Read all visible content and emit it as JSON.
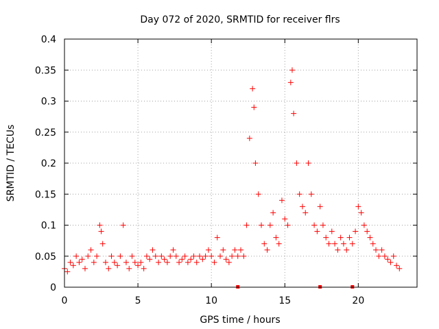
{
  "chart_data": {
    "type": "scatter",
    "title": "Day 072 of 2020, SRMTID for receiver flrs",
    "xlabel": "GPS time / hours",
    "ylabel": "SRMTID / TECUs",
    "xlim": [
      0,
      24
    ],
    "ylim": [
      0,
      0.4
    ],
    "x_ticks": [
      0,
      5,
      10,
      15,
      20
    ],
    "x_tick_labels": [
      "0",
      "5",
      "10",
      "15",
      "20"
    ],
    "y_ticks": [
      0,
      0.05,
      0.1,
      0.15,
      0.2,
      0.25,
      0.3,
      0.35,
      0.4
    ],
    "y_tick_labels": [
      "0",
      "0.05",
      "0.1",
      "0.15",
      "0.2",
      "0.25",
      "0.3",
      "0.35",
      "0.4"
    ],
    "grid": true,
    "marker": "plus",
    "series_color": "#ff0000",
    "baseline_markers_x": [
      11.8,
      17.4,
      19.6
    ],
    "series": [
      {
        "name": "SRMTID",
        "x": [
          0.0,
          0.2,
          0.4,
          0.6,
          0.8,
          1.0,
          1.2,
          1.4,
          1.6,
          1.8,
          2.0,
          2.2,
          2.4,
          2.5,
          2.6,
          2.8,
          3.0,
          3.2,
          3.4,
          3.6,
          3.8,
          4.0,
          4.2,
          4.4,
          4.6,
          4.8,
          5.0,
          5.2,
          5.4,
          5.6,
          5.8,
          6.0,
          6.2,
          6.4,
          6.6,
          6.8,
          7.0,
          7.2,
          7.4,
          7.6,
          7.8,
          8.0,
          8.2,
          8.4,
          8.6,
          8.8,
          9.0,
          9.2,
          9.4,
          9.6,
          9.8,
          10.0,
          10.2,
          10.4,
          10.6,
          10.8,
          11.0,
          11.2,
          11.4,
          11.6,
          11.8,
          12.0,
          12.2,
          12.4,
          12.6,
          12.8,
          12.9,
          13.0,
          13.2,
          13.4,
          13.6,
          13.8,
          14.0,
          14.2,
          14.4,
          14.6,
          14.8,
          15.0,
          15.2,
          15.4,
          15.5,
          15.6,
          15.8,
          16.0,
          16.2,
          16.4,
          16.6,
          16.8,
          17.0,
          17.2,
          17.4,
          17.6,
          17.8,
          18.0,
          18.2,
          18.4,
          18.6,
          18.8,
          19.0,
          19.2,
          19.4,
          19.6,
          19.8,
          20.0,
          20.2,
          20.4,
          20.6,
          20.8,
          21.0,
          21.2,
          21.4,
          21.6,
          21.8,
          22.0,
          22.2,
          22.4,
          22.6,
          22.8
        ],
        "y": [
          0.03,
          0.025,
          0.04,
          0.035,
          0.05,
          0.04,
          0.045,
          0.03,
          0.05,
          0.06,
          0.04,
          0.05,
          0.1,
          0.09,
          0.07,
          0.04,
          0.03,
          0.05,
          0.04,
          0.035,
          0.05,
          0.1,
          0.04,
          0.03,
          0.05,
          0.04,
          0.035,
          0.04,
          0.03,
          0.05,
          0.045,
          0.06,
          0.05,
          0.04,
          0.05,
          0.045,
          0.04,
          0.05,
          0.06,
          0.05,
          0.04,
          0.045,
          0.05,
          0.04,
          0.045,
          0.05,
          0.04,
          0.05,
          0.045,
          0.05,
          0.06,
          0.05,
          0.04,
          0.08,
          0.05,
          0.06,
          0.045,
          0.04,
          0.05,
          0.06,
          0.05,
          0.06,
          0.05,
          0.1,
          0.24,
          0.32,
          0.29,
          0.2,
          0.15,
          0.1,
          0.07,
          0.06,
          0.1,
          0.12,
          0.08,
          0.07,
          0.14,
          0.11,
          0.1,
          0.33,
          0.35,
          0.28,
          0.2,
          0.15,
          0.13,
          0.12,
          0.2,
          0.15,
          0.1,
          0.09,
          0.13,
          0.1,
          0.08,
          0.07,
          0.09,
          0.07,
          0.06,
          0.08,
          0.07,
          0.06,
          0.08,
          0.07,
          0.09,
          0.13,
          0.12,
          0.1,
          0.09,
          0.08,
          0.07,
          0.06,
          0.05,
          0.06,
          0.05,
          0.045,
          0.04,
          0.05,
          0.035,
          0.03
        ]
      }
    ]
  }
}
